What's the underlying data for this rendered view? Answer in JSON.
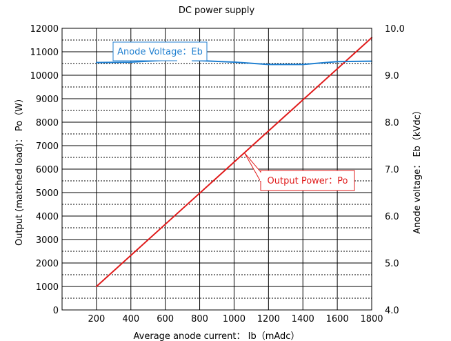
{
  "chart_data": {
    "type": "line",
    "title": "DC power supply",
    "xlabel": "Average anode current： Ib（mAdc）",
    "ylabel_left": "Output (matched load)：  Po（W）",
    "ylabel_right": "Anode voltage：  Eb（kVdc）",
    "xlim": [
      0,
      1800
    ],
    "ylim_left": [
      0,
      12000
    ],
    "ylim_right": [
      4.0,
      10.0
    ],
    "x_ticks": [
      "200",
      "400",
      "600",
      "800",
      "1000",
      "1200",
      "1400",
      "1600",
      "1800"
    ],
    "y_left_ticks": [
      "0",
      "1000",
      "2000",
      "3000",
      "4000",
      "5000",
      "6000",
      "7000",
      "8000",
      "9000",
      "10000",
      "11000",
      "12000"
    ],
    "y_right_ticks": [
      "4.0",
      "5.0",
      "6.0",
      "7.0",
      "8.0",
      "9.0",
      "10.0"
    ],
    "grid": true,
    "series": [
      {
        "name": "Output Power：Po",
        "axis": "left",
        "color": "#e01b1b",
        "x": [
          200,
          1800
        ],
        "y": [
          1000,
          11600
        ]
      },
      {
        "name": "Anode Voltage：Eb",
        "axis": "right",
        "color": "#1f7fd0",
        "x": [
          200,
          400,
          600,
          800,
          1000,
          1200,
          1400,
          1600,
          1800
        ],
        "y": [
          9.27,
          9.28,
          9.32,
          9.31,
          9.28,
          9.23,
          9.23,
          9.29,
          9.3
        ]
      }
    ],
    "annotations": [
      {
        "series": 1,
        "text": "Anode Voltage：Eb",
        "at_x": 810
      },
      {
        "series": 0,
        "text": "Output Power：Po",
        "at_x": 1060
      }
    ]
  }
}
